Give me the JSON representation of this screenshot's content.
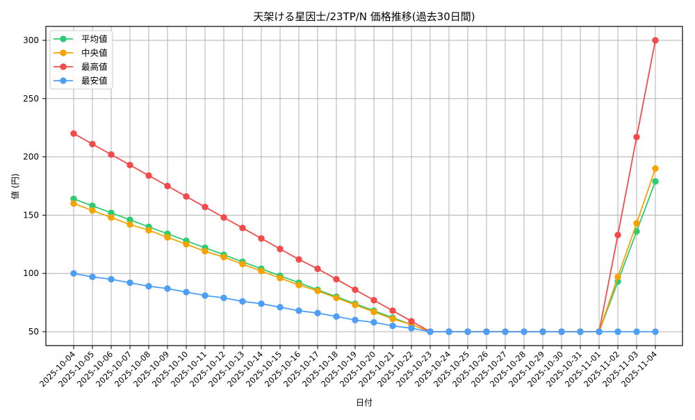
{
  "chart_data": {
    "type": "line",
    "title": "天架ける星因士/23TP/N 価格推移(過去30日間)",
    "xlabel": "日付",
    "ylabel": "値 (円)",
    "ylim": [
      37,
      312
    ],
    "yticks": [
      50,
      100,
      150,
      200,
      250,
      300
    ],
    "grid": true,
    "legend_position": "upper left",
    "categories": [
      "2025-10-04",
      "2025-10-05",
      "2025-10-06",
      "2025-10-07",
      "2025-10-08",
      "2025-10-09",
      "2025-10-10",
      "2025-10-11",
      "2025-10-12",
      "2025-10-13",
      "2025-10-14",
      "2025-10-15",
      "2025-10-16",
      "2025-10-17",
      "2025-10-18",
      "2025-10-19",
      "2025-10-20",
      "2025-10-21",
      "2025-10-22",
      "2025-10-23",
      "2025-10-24",
      "2025-10-25",
      "2025-10-26",
      "2025-10-27",
      "2025-10-28",
      "2025-10-29",
      "2025-10-30",
      "2025-10-31",
      "2025-11-01",
      "2025-11-02",
      "2025-11-03",
      "2025-11-04"
    ],
    "series": [
      {
        "name": "平均値",
        "color": "#2ecc71",
        "values": [
          164,
          158,
          152,
          146,
          140,
          134,
          128,
          122,
          116,
          110,
          104,
          98,
          92,
          86,
          80,
          74,
          68,
          62,
          56,
          50,
          50,
          50,
          50,
          50,
          50,
          50,
          50,
          50,
          50,
          93,
          136,
          179
        ]
      },
      {
        "name": "中央値",
        "color": "#f5a300",
        "values": [
          160,
          154,
          148,
          142,
          137,
          131,
          125,
          119,
          114,
          108,
          102,
          96,
          90,
          85,
          79,
          73,
          67,
          61,
          56,
          50,
          50,
          50,
          50,
          50,
          50,
          50,
          50,
          50,
          50,
          97,
          143,
          190
        ]
      },
      {
        "name": "最高値",
        "color": "#f24b4b",
        "values": [
          220,
          211,
          202,
          193,
          184,
          175,
          166,
          157,
          148,
          139,
          130,
          121,
          112,
          104,
          95,
          86,
          77,
          68,
          59,
          50,
          50,
          50,
          50,
          50,
          50,
          50,
          50,
          50,
          50,
          133,
          217,
          300
        ]
      },
      {
        "name": "最安値",
        "color": "#4d9ef5",
        "values": [
          100,
          97,
          95,
          92,
          89,
          87,
          84,
          81,
          79,
          76,
          74,
          71,
          68,
          66,
          63,
          60,
          58,
          55,
          53,
          50,
          50,
          50,
          50,
          50,
          50,
          50,
          50,
          50,
          50,
          50,
          50,
          50
        ]
      }
    ]
  }
}
